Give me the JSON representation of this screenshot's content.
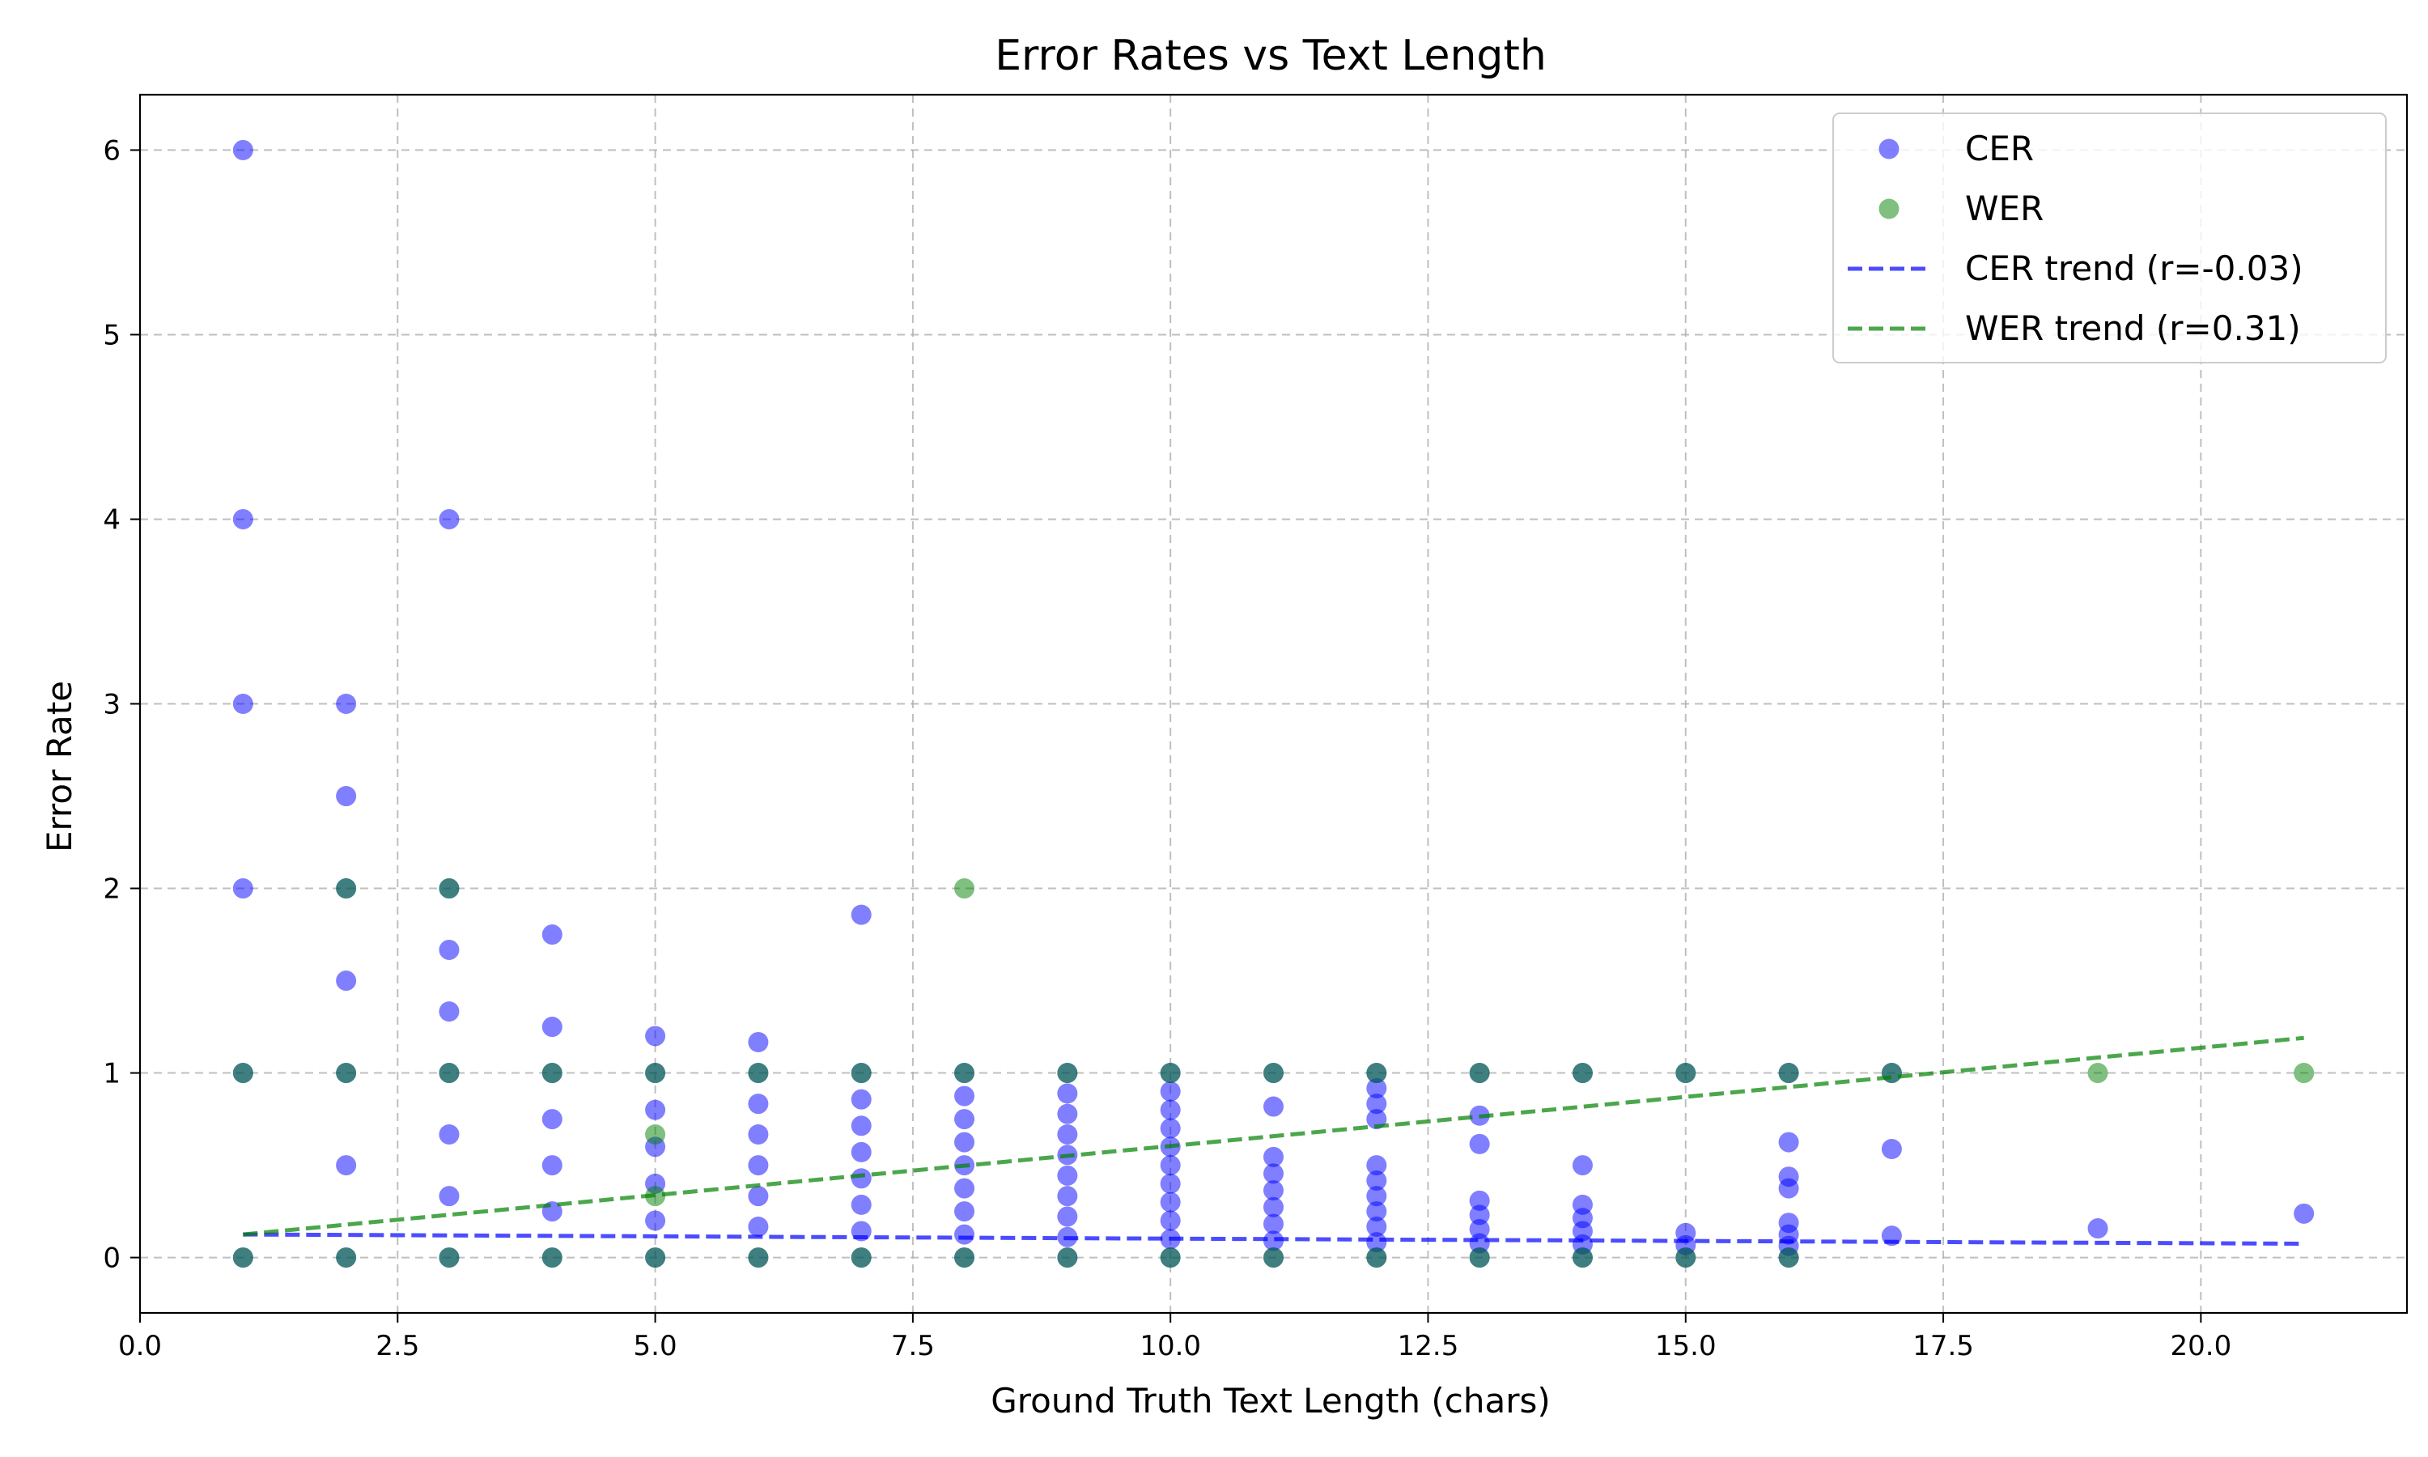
{
  "chart_data": {
    "type": "scatter",
    "title": "Error Rates vs Text Length",
    "xlabel": "Ground Truth Text Length (chars)",
    "ylabel": "Error Rate",
    "xlim": [
      0,
      22
    ],
    "ylim": [
      -0.3,
      6.3
    ],
    "xticks": [
      0,
      2.5,
      5,
      7.5,
      10,
      12.5,
      15,
      17.5,
      20
    ],
    "xtick_labels": [
      "0.0",
      "2.5",
      "5.0",
      "7.5",
      "10.0",
      "12.5",
      "15.0",
      "17.5",
      "20.0"
    ],
    "yticks": [
      0,
      1,
      2,
      3,
      4,
      5,
      6
    ],
    "ytick_labels": [
      "0",
      "1",
      "2",
      "3",
      "4",
      "5",
      "6"
    ],
    "grid": true,
    "legend_position": "top-right",
    "series": [
      {
        "name": "CER",
        "kind": "scatter",
        "color": "#0000ff",
        "points": [
          [
            1,
            6
          ],
          [
            1,
            4
          ],
          [
            1,
            3
          ],
          [
            1,
            2
          ],
          [
            1,
            1
          ],
          [
            1,
            0
          ],
          [
            2,
            3
          ],
          [
            2,
            2.5
          ],
          [
            2,
            2
          ],
          [
            2,
            1.5
          ],
          [
            2,
            1
          ],
          [
            2,
            0.5
          ],
          [
            2,
            0
          ],
          [
            3,
            4
          ],
          [
            3,
            2
          ],
          [
            3,
            1.667
          ],
          [
            3,
            1.333
          ],
          [
            3,
            1
          ],
          [
            3,
            0.667
          ],
          [
            3,
            0.333
          ],
          [
            3,
            0
          ],
          [
            4,
            1.75
          ],
          [
            4,
            1.25
          ],
          [
            4,
            1
          ],
          [
            4,
            0.75
          ],
          [
            4,
            0.5
          ],
          [
            4,
            0.25
          ],
          [
            4,
            0
          ],
          [
            5,
            1.2
          ],
          [
            5,
            1
          ],
          [
            5,
            0.8
          ],
          [
            5,
            0.6
          ],
          [
            5,
            0.4
          ],
          [
            5,
            0.2
          ],
          [
            5,
            0
          ],
          [
            6,
            1.167
          ],
          [
            6,
            1
          ],
          [
            6,
            0.833
          ],
          [
            6,
            0.667
          ],
          [
            6,
            0.5
          ],
          [
            6,
            0.333
          ],
          [
            6,
            0.167
          ],
          [
            6,
            0
          ],
          [
            7,
            1.857
          ],
          [
            7,
            1
          ],
          [
            7,
            0.857
          ],
          [
            7,
            0.714
          ],
          [
            7,
            0.571
          ],
          [
            7,
            0.429
          ],
          [
            7,
            0.286
          ],
          [
            7,
            0.143
          ],
          [
            7,
            0
          ],
          [
            8,
            1
          ],
          [
            8,
            0.875
          ],
          [
            8,
            0.75
          ],
          [
            8,
            0.625
          ],
          [
            8,
            0.5
          ],
          [
            8,
            0.375
          ],
          [
            8,
            0.25
          ],
          [
            8,
            0.125
          ],
          [
            8,
            0
          ],
          [
            9,
            1
          ],
          [
            9,
            0.889
          ],
          [
            9,
            0.778
          ],
          [
            9,
            0.667
          ],
          [
            9,
            0.556
          ],
          [
            9,
            0.444
          ],
          [
            9,
            0.333
          ],
          [
            9,
            0.222
          ],
          [
            9,
            0.111
          ],
          [
            9,
            0
          ],
          [
            10,
            1
          ],
          [
            10,
            0.9
          ],
          [
            10,
            0.8
          ],
          [
            10,
            0.7
          ],
          [
            10,
            0.6
          ],
          [
            10,
            0.5
          ],
          [
            10,
            0.4
          ],
          [
            10,
            0.3
          ],
          [
            10,
            0.2
          ],
          [
            10,
            0.1
          ],
          [
            10,
            0
          ],
          [
            11,
            1
          ],
          [
            11,
            0.818
          ],
          [
            11,
            0.545
          ],
          [
            11,
            0.455
          ],
          [
            11,
            0.364
          ],
          [
            11,
            0.273
          ],
          [
            11,
            0.182
          ],
          [
            11,
            0.091
          ],
          [
            11,
            0
          ],
          [
            12,
            1
          ],
          [
            12,
            0.917
          ],
          [
            12,
            0.833
          ],
          [
            12,
            0.75
          ],
          [
            12,
            0.5
          ],
          [
            12,
            0.417
          ],
          [
            12,
            0.333
          ],
          [
            12,
            0.25
          ],
          [
            12,
            0.167
          ],
          [
            12,
            0.083
          ],
          [
            12,
            0
          ],
          [
            13,
            1
          ],
          [
            13,
            0.769
          ],
          [
            13,
            0.615
          ],
          [
            13,
            0.308
          ],
          [
            13,
            0.231
          ],
          [
            13,
            0.154
          ],
          [
            13,
            0.077
          ],
          [
            13,
            0
          ],
          [
            14,
            1
          ],
          [
            14,
            0.5
          ],
          [
            14,
            0.286
          ],
          [
            14,
            0.214
          ],
          [
            14,
            0.143
          ],
          [
            14,
            0.071
          ],
          [
            14,
            0
          ],
          [
            15,
            1
          ],
          [
            15,
            0.133
          ],
          [
            15,
            0.067
          ],
          [
            15,
            0
          ],
          [
            16,
            1
          ],
          [
            16,
            0.625
          ],
          [
            16,
            0.438
          ],
          [
            16,
            0.375
          ],
          [
            16,
            0.188
          ],
          [
            16,
            0.125
          ],
          [
            16,
            0.063
          ],
          [
            16,
            0
          ],
          [
            17,
            1
          ],
          [
            17,
            0.588
          ],
          [
            17,
            0.118
          ],
          [
            19,
            0.158
          ],
          [
            21,
            0.238
          ]
        ]
      },
      {
        "name": "WER",
        "kind": "scatter",
        "color": "#008000",
        "points": [
          [
            1,
            1
          ],
          [
            1,
            0
          ],
          [
            2,
            2
          ],
          [
            2,
            1
          ],
          [
            2,
            0
          ],
          [
            3,
            2
          ],
          [
            3,
            1
          ],
          [
            3,
            0
          ],
          [
            4,
            1
          ],
          [
            4,
            0
          ],
          [
            5,
            1
          ],
          [
            5,
            0.667
          ],
          [
            5,
            0.333
          ],
          [
            5,
            0
          ],
          [
            6,
            1
          ],
          [
            6,
            0
          ],
          [
            7,
            1
          ],
          [
            7,
            0
          ],
          [
            8,
            2
          ],
          [
            8,
            1
          ],
          [
            8,
            0
          ],
          [
            9,
            1
          ],
          [
            9,
            0
          ],
          [
            10,
            1
          ],
          [
            10,
            0
          ],
          [
            11,
            1
          ],
          [
            11,
            0
          ],
          [
            12,
            1
          ],
          [
            12,
            0
          ],
          [
            13,
            1
          ],
          [
            13,
            0
          ],
          [
            14,
            1
          ],
          [
            14,
            0
          ],
          [
            15,
            1
          ],
          [
            15,
            0
          ],
          [
            16,
            1
          ],
          [
            16,
            0
          ],
          [
            17,
            1
          ],
          [
            19,
            1
          ],
          [
            21,
            1
          ]
        ]
      },
      {
        "name": "CER trend (r=-0.03)",
        "kind": "line",
        "color": "#0000ff",
        "x": [
          1,
          21
        ],
        "y": [
          0.125,
          0.075
        ]
      },
      {
        "name": "WER trend (r=0.31)",
        "kind": "line",
        "color": "#008000",
        "x": [
          1,
          21
        ],
        "y": [
          0.125,
          1.19
        ]
      }
    ]
  }
}
